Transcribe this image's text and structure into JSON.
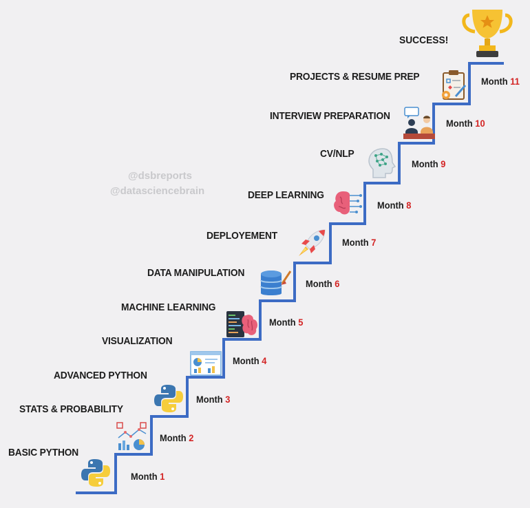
{
  "success_label": "SUCCESS!",
  "watermarks": [
    "@dsbreports",
    "@datasciencebrain"
  ],
  "month_word": "Month",
  "colors": {
    "stair": "#3c6bc4",
    "month_number": "#d32424",
    "text": "#1c1c1c"
  },
  "steps": [
    {
      "label": "BASIC PYTHON",
      "month": "1",
      "icon": "python-logo-icon"
    },
    {
      "label": "STATS & PROBABILITY",
      "month": "2",
      "icon": "statistics-chart-icon"
    },
    {
      "label": "ADVANCED PYTHON",
      "month": "3",
      "icon": "python-logo-icon"
    },
    {
      "label": "VISUALIZATION",
      "month": "4",
      "icon": "dashboard-icon"
    },
    {
      "label": "MACHINE LEARNING",
      "month": "5",
      "icon": "code-brain-icon"
    },
    {
      "label": "DATA MANIPULATION",
      "month": "6",
      "icon": "database-icon"
    },
    {
      "label": "DEPLOYEMENT",
      "month": "7",
      "icon": "rocket-icon"
    },
    {
      "label": "DEEP LEARNING",
      "month": "8",
      "icon": "brain-circuit-icon"
    },
    {
      "label": "CV/NLP",
      "month": "9",
      "icon": "head-network-icon"
    },
    {
      "label": "INTERVIEW PREPARATION",
      "month": "10",
      "icon": "interview-icon"
    },
    {
      "label": "PROJECTS & RESUME PREP",
      "month": "11",
      "icon": "clipboard-icon"
    }
  ]
}
